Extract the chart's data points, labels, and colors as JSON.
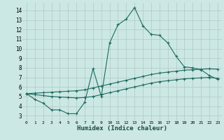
{
  "xlabel": "Humidex (Indice chaleur)",
  "ylabel": "",
  "background_color": "#cce8e4",
  "grid_color": "#b0c8c4",
  "line_color": "#1a6b60",
  "xlim": [
    -0.5,
    23.5
  ],
  "ylim": [
    2.5,
    14.8
  ],
  "xtick_labels": [
    "0",
    "1",
    "2",
    "3",
    "4",
    "5",
    "6",
    "7",
    "8",
    "9",
    "10",
    "11",
    "12",
    "13",
    "14",
    "15",
    "16",
    "17",
    "18",
    "19",
    "20",
    "21",
    "22",
    "23"
  ],
  "yticks": [
    3,
    4,
    5,
    6,
    7,
    8,
    9,
    10,
    11,
    12,
    13,
    14
  ],
  "line1_x": [
    0,
    1,
    2,
    3,
    4,
    5,
    6,
    7,
    8,
    9,
    10,
    11,
    12,
    13,
    14,
    15,
    16,
    17,
    18,
    19,
    20,
    21,
    22,
    23
  ],
  "line1_y": [
    5.3,
    4.7,
    4.3,
    3.6,
    3.6,
    3.2,
    3.2,
    4.4,
    7.9,
    5.0,
    10.6,
    12.5,
    13.1,
    14.3,
    12.4,
    11.5,
    11.4,
    10.6,
    9.2,
    8.1,
    8.0,
    7.8,
    7.2,
    6.8
  ],
  "line2_x": [
    0,
    1,
    2,
    3,
    4,
    5,
    6,
    7,
    8,
    9,
    10,
    11,
    12,
    13,
    14,
    15,
    16,
    17,
    18,
    19,
    20,
    21,
    22,
    23
  ],
  "line2_y": [
    5.3,
    5.35,
    5.4,
    5.45,
    5.5,
    5.55,
    5.6,
    5.7,
    5.9,
    6.1,
    6.3,
    6.5,
    6.7,
    6.9,
    7.1,
    7.3,
    7.45,
    7.55,
    7.65,
    7.75,
    7.8,
    7.85,
    7.9,
    7.85
  ],
  "line3_x": [
    0,
    1,
    2,
    3,
    4,
    5,
    6,
    7,
    8,
    9,
    10,
    11,
    12,
    13,
    14,
    15,
    16,
    17,
    18,
    19,
    20,
    21,
    22,
    23
  ],
  "line3_y": [
    5.3,
    5.2,
    5.1,
    5.0,
    4.95,
    4.9,
    4.85,
    4.9,
    5.0,
    5.2,
    5.4,
    5.6,
    5.8,
    6.0,
    6.2,
    6.4,
    6.55,
    6.65,
    6.75,
    6.85,
    6.9,
    6.95,
    7.0,
    6.9
  ]
}
